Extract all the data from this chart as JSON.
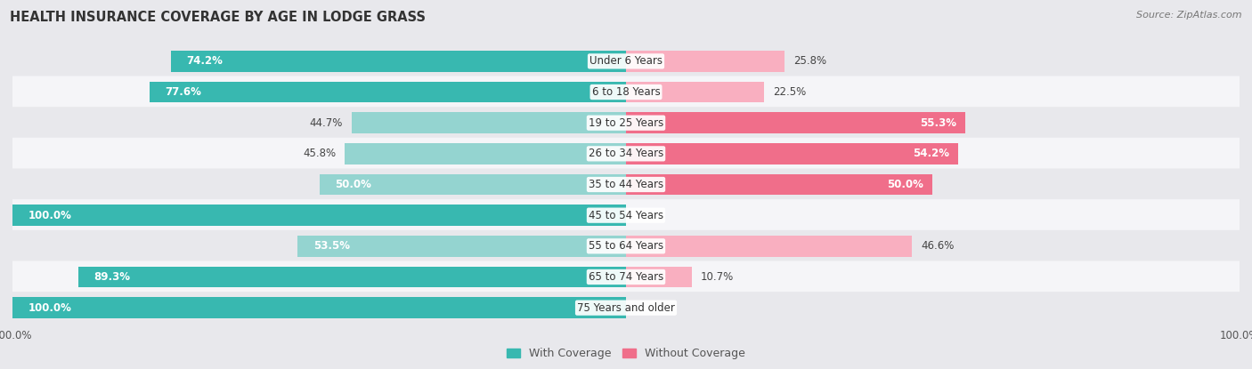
{
  "title": "HEALTH INSURANCE COVERAGE BY AGE IN LODGE GRASS",
  "source": "Source: ZipAtlas.com",
  "categories": [
    "Under 6 Years",
    "6 to 18 Years",
    "19 to 25 Years",
    "26 to 34 Years",
    "35 to 44 Years",
    "45 to 54 Years",
    "55 to 64 Years",
    "65 to 74 Years",
    "75 Years and older"
  ],
  "with_coverage": [
    74.2,
    77.6,
    44.7,
    45.8,
    50.0,
    100.0,
    53.5,
    89.3,
    100.0
  ],
  "without_coverage": [
    25.8,
    22.5,
    55.3,
    54.2,
    50.0,
    0.0,
    46.6,
    10.7,
    0.0
  ],
  "color_with_dark": "#38b8b0",
  "color_with_light": "#94d4d0",
  "color_without_dark": "#f06e8a",
  "color_without_light": "#f9afc0",
  "row_bg_odd": "#e8e8ec",
  "row_bg_even": "#f5f5f8",
  "bg_color": "#e8e8ec",
  "title_fontsize": 10.5,
  "source_fontsize": 8,
  "label_fontsize": 8.5,
  "legend_fontsize": 9,
  "axis_label_fontsize": 8.5
}
